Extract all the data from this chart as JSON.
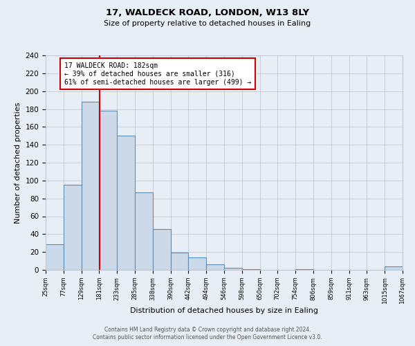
{
  "title1": "17, WALDECK ROAD, LONDON, W13 8LY",
  "title2": "Size of property relative to detached houses in Ealing",
  "xlabel": "Distribution of detached houses by size in Ealing",
  "ylabel": "Number of detached properties",
  "bin_edges": [
    25,
    77,
    129,
    181,
    233,
    285,
    338,
    390,
    442,
    494,
    546,
    598,
    650,
    702,
    754,
    806,
    859,
    911,
    963,
    1015,
    1067
  ],
  "bin_counts": [
    29,
    95,
    188,
    178,
    150,
    87,
    46,
    19,
    14,
    6,
    2,
    1,
    0,
    0,
    1,
    0,
    0,
    0,
    0,
    4
  ],
  "tick_labels": [
    "25sqm",
    "77sqm",
    "129sqm",
    "181sqm",
    "233sqm",
    "285sqm",
    "338sqm",
    "390sqm",
    "442sqm",
    "494sqm",
    "546sqm",
    "598sqm",
    "650sqm",
    "702sqm",
    "754sqm",
    "806sqm",
    "859sqm",
    "911sqm",
    "963sqm",
    "1015sqm",
    "1067sqm"
  ],
  "bar_face_color": "#ccd9e8",
  "bar_edge_color": "#5b8db8",
  "bg_color": "#e8eef5",
  "grid_color": "#c0c8d8",
  "vline_x": 182,
  "vline_color": "#cc0000",
  "annotation_title": "17 WALDECK ROAD: 182sqm",
  "annotation_line1": "← 39% of detached houses are smaller (316)",
  "annotation_line2": "61% of semi-detached houses are larger (499) →",
  "annotation_box_color": "#ffffff",
  "annotation_edge_color": "#cc0000",
  "ylim": [
    0,
    240
  ],
  "yticks": [
    0,
    20,
    40,
    60,
    80,
    100,
    120,
    140,
    160,
    180,
    200,
    220,
    240
  ],
  "footer1": "Contains HM Land Registry data © Crown copyright and database right 2024.",
  "footer2": "Contains public sector information licensed under the Open Government Licence v3.0."
}
